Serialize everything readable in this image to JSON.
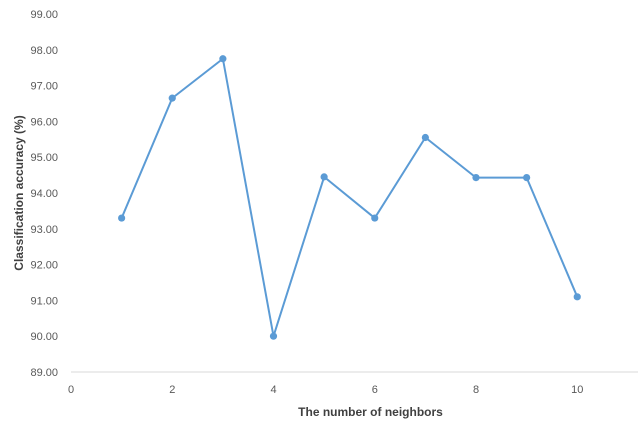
{
  "chart_data": {
    "type": "line",
    "title": "",
    "xlabel": "The number of neighbors",
    "ylabel": "Classification accuracy (%)",
    "xlim": [
      0,
      11.2
    ],
    "ylim": [
      89,
      99
    ],
    "x_ticks": [
      0,
      2,
      4,
      6,
      8,
      10
    ],
    "x_tick_labels": [
      "0",
      "2",
      "4",
      "6",
      "8",
      "10"
    ],
    "y_ticks": [
      89,
      90,
      91,
      92,
      93,
      94,
      95,
      96,
      97,
      98,
      99
    ],
    "y_tick_labels": [
      "89.00",
      "90.00",
      "91.00",
      "92.00",
      "93.00",
      "94.00",
      "95.00",
      "96.00",
      "97.00",
      "98.00",
      "99.00"
    ],
    "grid": false,
    "legend": "none",
    "series": [
      {
        "color": "#5b9bd5",
        "x": [
          1,
          2,
          3,
          4,
          5,
          6,
          7,
          8,
          9,
          10
        ],
        "y": [
          93.3,
          96.65,
          97.75,
          90.0,
          94.45,
          93.3,
          95.55,
          94.43,
          94.43,
          91.1
        ]
      }
    ]
  }
}
